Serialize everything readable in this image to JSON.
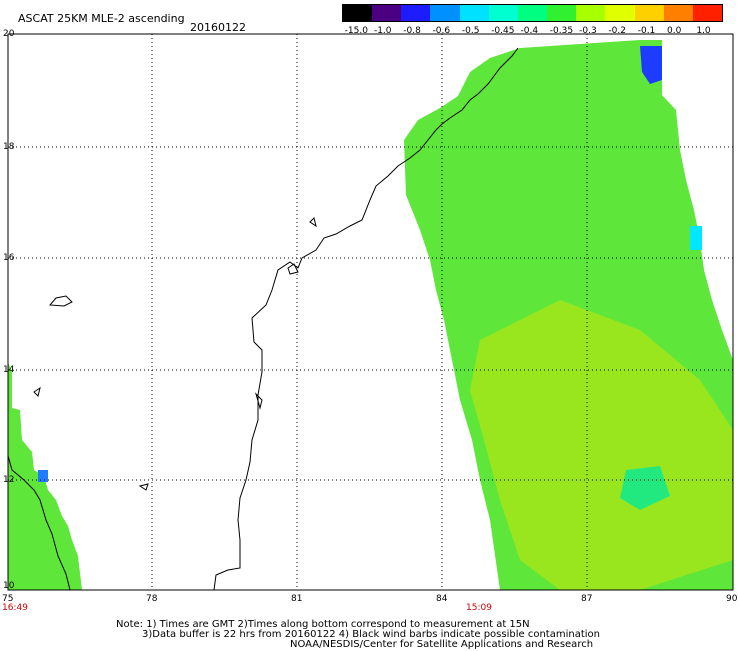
{
  "header": {
    "title": "ASCAT 25KM MLE-2 ascending",
    "date": "20160122"
  },
  "colorbar": {
    "labels": [
      "-15.0",
      "-1.0",
      "-0.8",
      "-0.6",
      "-0.5",
      "-0.45",
      "-0.4",
      "-0.35",
      "-0.3",
      "-0.2",
      "-0.1",
      "0.0",
      "1.0"
    ],
    "colors": [
      "#000000",
      "#4b0082",
      "#1c1cff",
      "#0090ff",
      "#00e0ff",
      "#00ffd0",
      "#00ff80",
      "#30f030",
      "#a8ff00",
      "#e0ff00",
      "#ffd000",
      "#ff8000",
      "#ff2000"
    ]
  },
  "map": {
    "lat_labels": [
      "20",
      "18",
      "16",
      "14",
      "12",
      "10"
    ],
    "lon_labels": [
      "75",
      "78",
      "81",
      "84",
      "87",
      "90"
    ],
    "time_labels": [
      "16:49",
      "15:09"
    ]
  },
  "footer": {
    "line1": "Note: 1) Times are GMT 2)Times along bottom correspond to measurement at 15N",
    "line2": "3)Data buffer is 22 hrs from 20160122 4) Black wind barbs indicate possible contamination",
    "line3": "NOAA/NESDIS/Center for Satellite Applications and Research"
  }
}
